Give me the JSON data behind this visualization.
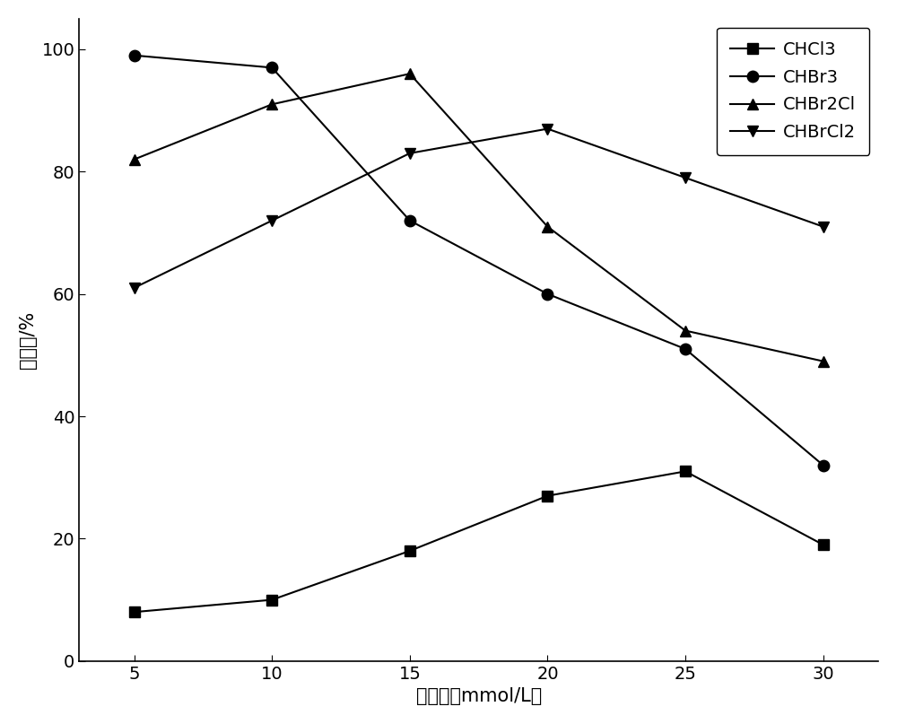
{
  "x": [
    5,
    10,
    15,
    20,
    25,
    30
  ],
  "CHCl3": [
    8,
    10,
    18,
    27,
    31,
    19
  ],
  "CHBr3": [
    99,
    97,
    72,
    60,
    51,
    32
  ],
  "CHBr2Cl": [
    82,
    91,
    96,
    71,
    54,
    49
  ],
  "CHBrCl2": [
    61,
    72,
    83,
    87,
    79,
    71
  ],
  "xlabel": "投加量（mmol/L）",
  "ylabel": "去除率/%",
  "ylim": [
    0,
    105
  ],
  "xlim": [
    3,
    32
  ],
  "xticks": [
    5,
    10,
    15,
    20,
    25,
    30
  ],
  "yticks": [
    0,
    20,
    40,
    60,
    80,
    100
  ],
  "legend_labels": [
    "CHCl3",
    "CHBr3",
    "CHBr2Cl",
    "CHBrCl2"
  ],
  "line_color": "#000000",
  "marker_CHCl3": "s",
  "marker_CHBr3": "o",
  "marker_CHBr2Cl": "^",
  "marker_CHBrCl2": "v",
  "linewidth": 1.5,
  "markersize": 9,
  "label_fontsize": 15,
  "tick_fontsize": 14,
  "legend_fontsize": 14
}
